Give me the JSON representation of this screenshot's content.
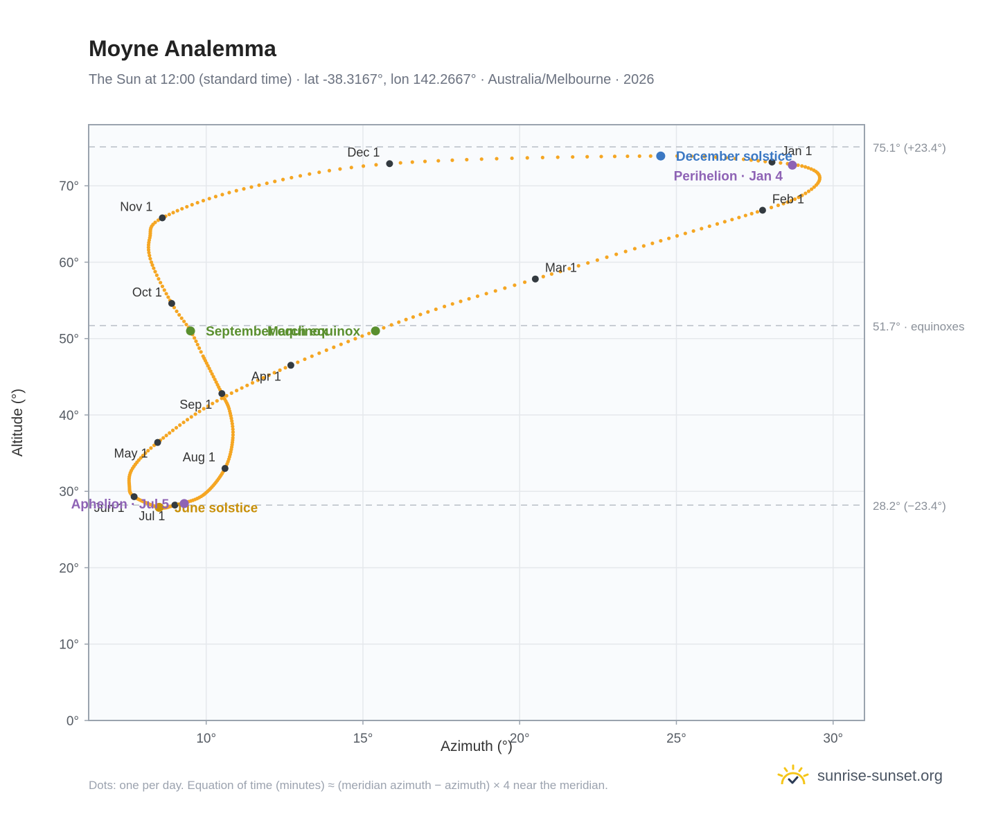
{
  "header": {
    "title": "Moyne Analemma",
    "subtitle": "The Sun at 12:00 (standard time) · lat -38.3167°, lon 142.2667° · Australia/Melbourne · 2026"
  },
  "footer": {
    "note": "Dots: one per day. Equation of time (minutes) ≈ (meridian azimuth − azimuth) × 4 near the meridian.",
    "brand": "sunrise-sunset.org"
  },
  "colors": {
    "path": "#f5a623",
    "month_marker": "#333a40",
    "equinox": "#5a8f2e",
    "december_solstice": "#3b78c3",
    "june_solstice": "#c8900a",
    "apsis": "#8e63b5",
    "reference_line": "#b8bec6",
    "grid": "#e5e8ec",
    "plot_bg": "#f9fbfd"
  },
  "chart_data": {
    "type": "scatter",
    "xlabel": "Azimuth (°)",
    "ylabel": "Altitude (°)",
    "xlim": [
      6.25,
      31
    ],
    "ylim": [
      0,
      78
    ],
    "xticks": [
      10,
      15,
      20,
      25,
      30
    ],
    "yticks": [
      0,
      10,
      20,
      30,
      40,
      50,
      60,
      70
    ],
    "xtick_labels": [
      "10°",
      "15°",
      "20°",
      "25°",
      "30°"
    ],
    "ytick_labels": [
      "0°",
      "10°",
      "20°",
      "30°",
      "40°",
      "50°",
      "60°",
      "70°"
    ],
    "grid": true,
    "reference_lines": [
      {
        "y": 75.1,
        "label": "75.1° (+23.4°)"
      },
      {
        "y": 51.7,
        "label": "51.7° · equinoxes"
      },
      {
        "y": 28.2,
        "label": "28.2° (−23.4°)"
      }
    ],
    "path_keypoints": [
      {
        "day": 0,
        "az": 28.05,
        "alt": 73.1
      },
      {
        "day": 8,
        "az": 29.3,
        "alt": 72.2
      },
      {
        "day": 16,
        "az": 29.55,
        "alt": 70.6
      },
      {
        "day": 24,
        "az": 28.9,
        "alt": 68.5
      },
      {
        "day": 31,
        "az": 27.75,
        "alt": 66.8
      },
      {
        "day": 45,
        "az": 24.5,
        "alt": 62.8
      },
      {
        "day": 59,
        "az": 20.5,
        "alt": 57.8
      },
      {
        "day": 69,
        "az": 17.6,
        "alt": 54.2
      },
      {
        "day": 78,
        "az": 15.4,
        "alt": 51.0
      },
      {
        "day": 90,
        "az": 12.7,
        "alt": 46.5
      },
      {
        "day": 105,
        "az": 10.2,
        "alt": 41.5
      },
      {
        "day": 120,
        "az": 8.45,
        "alt": 36.4
      },
      {
        "day": 131,
        "az": 7.65,
        "alt": 33.0
      },
      {
        "day": 141,
        "az": 7.55,
        "alt": 30.6
      },
      {
        "day": 151,
        "az": 7.7,
        "alt": 29.3
      },
      {
        "day": 171,
        "az": 8.5,
        "alt": 27.9
      },
      {
        "day": 181,
        "az": 9.0,
        "alt": 28.2
      },
      {
        "day": 195,
        "az": 9.9,
        "alt": 29.5
      },
      {
        "day": 212,
        "az": 10.6,
        "alt": 33.0
      },
      {
        "day": 225,
        "az": 10.85,
        "alt": 37.0
      },
      {
        "day": 235,
        "az": 10.75,
        "alt": 40.5
      },
      {
        "day": 243,
        "az": 10.5,
        "alt": 42.8
      },
      {
        "day": 258,
        "az": 9.9,
        "alt": 47.7
      },
      {
        "day": 265,
        "az": 9.5,
        "alt": 51.0
      },
      {
        "day": 273,
        "az": 8.9,
        "alt": 54.6
      },
      {
        "day": 285,
        "az": 8.25,
        "alt": 60.0
      },
      {
        "day": 294,
        "az": 8.2,
        "alt": 63.2
      },
      {
        "day": 304,
        "az": 8.6,
        "alt": 65.8
      },
      {
        "day": 319,
        "az": 11.2,
        "alt": 69.6
      },
      {
        "day": 334,
        "az": 15.85,
        "alt": 72.9
      },
      {
        "day": 354,
        "az": 24.5,
        "alt": 73.9
      },
      {
        "day": 365,
        "az": 28.05,
        "alt": 73.1
      }
    ],
    "month_markers": [
      {
        "label": "Jan 1",
        "az": 28.05,
        "alt": 73.1,
        "pos": "above-right"
      },
      {
        "label": "Feb 1",
        "az": 27.75,
        "alt": 66.8,
        "pos": "above-right"
      },
      {
        "label": "Mar 1",
        "az": 20.5,
        "alt": 57.8,
        "pos": "above-right"
      },
      {
        "label": "Apr 1",
        "az": 12.7,
        "alt": 46.5,
        "pos": "below-left"
      },
      {
        "label": "May 1",
        "az": 8.45,
        "alt": 36.4,
        "pos": "below-left"
      },
      {
        "label": "Jun 1",
        "az": 7.7,
        "alt": 29.3,
        "pos": "below-left"
      },
      {
        "label": "Jul 1",
        "az": 9.0,
        "alt": 28.2,
        "pos": "below-left"
      },
      {
        "label": "Aug 1",
        "az": 10.6,
        "alt": 33.0,
        "pos": "above-left"
      },
      {
        "label": "Sep 1",
        "az": 10.5,
        "alt": 42.8,
        "pos": "below-left"
      },
      {
        "label": "Oct 1",
        "az": 8.9,
        "alt": 54.6,
        "pos": "above-left"
      },
      {
        "label": "Nov 1",
        "az": 8.6,
        "alt": 65.8,
        "pos": "above-left"
      },
      {
        "label": "Dec 1",
        "az": 15.85,
        "alt": 72.9,
        "pos": "above-left"
      }
    ],
    "events": [
      {
        "label": "March equinox",
        "az": 15.4,
        "alt": 51.0,
        "kind": "equinox",
        "pos": "left"
      },
      {
        "label": "September equinox",
        "az": 9.5,
        "alt": 51.0,
        "kind": "equinox",
        "pos": "right"
      },
      {
        "label": "December solstice",
        "az": 24.5,
        "alt": 73.9,
        "kind": "december_solstice",
        "pos": "right"
      },
      {
        "label": "June solstice",
        "az": 8.5,
        "alt": 27.9,
        "kind": "june_solstice",
        "pos": "right"
      },
      {
        "label": "Perihelion · Jan 4",
        "az": 28.7,
        "alt": 72.7,
        "kind": "apsis",
        "pos": "below-left"
      },
      {
        "label": "Aphelion · Jul 5",
        "az": 9.3,
        "alt": 28.4,
        "kind": "apsis",
        "pos": "left"
      }
    ]
  }
}
